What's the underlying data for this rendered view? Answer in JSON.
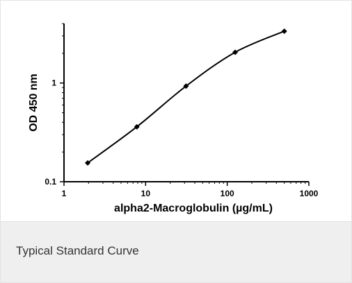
{
  "figure": {
    "caption": "Typical Standard Curve"
  },
  "chart_data": {
    "type": "line",
    "title": "",
    "xlabel": "alpha2-Macroglobulin (µg/mL)",
    "ylabel": "OD 450 nm",
    "x_scale": "log",
    "y_scale": "log",
    "xlim": [
      1,
      1000
    ],
    "ylim": [
      0.1,
      4
    ],
    "x_ticks": [
      {
        "value": 1,
        "label": "1"
      },
      {
        "value": 10,
        "label": "10"
      },
      {
        "value": 100,
        "label": "100"
      },
      {
        "value": 1000,
        "label": "1000"
      }
    ],
    "y_ticks": [
      {
        "value": 0.1,
        "label": "0.1"
      },
      {
        "value": 1,
        "label": "1"
      }
    ],
    "grid": false,
    "legend": "none",
    "series": [
      {
        "color": "#000000",
        "marker": "diamond",
        "x": [
          1.95,
          7.8,
          31.25,
          125,
          500
        ],
        "y": [
          0.155,
          0.36,
          0.93,
          2.05,
          3.35
        ]
      }
    ]
  }
}
